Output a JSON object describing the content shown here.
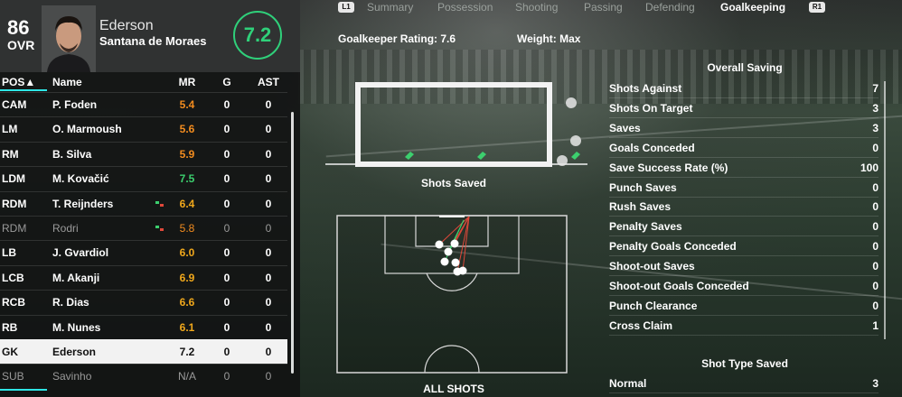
{
  "player": {
    "ovr": "86",
    "ovr_label": "OVR",
    "first_name": "Ederson",
    "last_name": "Santana de Moraes",
    "match_rating": "7.2"
  },
  "table": {
    "headers": {
      "pos": "POS▲",
      "name": "Name",
      "mr": "MR",
      "g": "G",
      "ast": "AST"
    },
    "rows": [
      {
        "pos": "CAM",
        "name": "P. Foden",
        "mr": "5.4",
        "g": "0",
        "ast": "0",
        "mr_color": "#f28c1f"
      },
      {
        "pos": "LM",
        "name": "O. Marmoush",
        "mr": "5.6",
        "g": "0",
        "ast": "0",
        "mr_color": "#f28c1f"
      },
      {
        "pos": "RM",
        "name": "B. Silva",
        "mr": "5.9",
        "g": "0",
        "ast": "0",
        "mr_color": "#f28c1f"
      },
      {
        "pos": "LDM",
        "name": "M. Kovačić",
        "mr": "7.5",
        "g": "0",
        "ast": "0",
        "mr_color": "#3ccf6e"
      },
      {
        "pos": "RDM",
        "name": "T. Reijnders",
        "mr": "6.4",
        "g": "0",
        "ast": "0",
        "mr_color": "#f0a81c",
        "sub": true
      },
      {
        "pos": "RDM",
        "name": "Rodri",
        "mr": "5.8",
        "g": "0",
        "ast": "0",
        "mr_color": "#f28c1f",
        "sub": true,
        "dim": true
      },
      {
        "pos": "LB",
        "name": "J. Gvardiol",
        "mr": "6.0",
        "g": "0",
        "ast": "0",
        "mr_color": "#f0a81c"
      },
      {
        "pos": "LCB",
        "name": "M. Akanji",
        "mr": "6.9",
        "g": "0",
        "ast": "0",
        "mr_color": "#f0a81c"
      },
      {
        "pos": "RCB",
        "name": "R. Dias",
        "mr": "6.6",
        "g": "0",
        "ast": "0",
        "mr_color": "#f0a81c"
      },
      {
        "pos": "RB",
        "name": "M. Nunes",
        "mr": "6.1",
        "g": "0",
        "ast": "0",
        "mr_color": "#f0a81c"
      },
      {
        "pos": "GK",
        "name": "Ederson",
        "mr": "7.2",
        "g": "0",
        "ast": "0",
        "mr_color": "#111111",
        "selected": true
      },
      {
        "pos": "SUB",
        "name": "Savinho",
        "mr": "N/A",
        "g": "0",
        "ast": "0",
        "mr_color": "#9a9a9a",
        "dim": true
      }
    ]
  },
  "tabs": {
    "left_button": "L1",
    "right_button": "R1",
    "items": [
      "Summary",
      "Possession",
      "Shooting",
      "Passing",
      "Defending",
      "Goalkeeping"
    ],
    "active": "Goalkeeping"
  },
  "header_info": {
    "gk_rating": "Goalkeeper Rating: 7.6",
    "weight": "Weight: Max"
  },
  "graphics": {
    "shots_saved_label": "Shots Saved",
    "all_shots_label": "ALL SHOTS"
  },
  "overall_saving": {
    "title": "Overall Saving",
    "items": [
      {
        "label": "Shots Against",
        "value": "7"
      },
      {
        "label": "Shots On Target",
        "value": "3"
      },
      {
        "label": "Saves",
        "value": "3"
      },
      {
        "label": "Goals Conceded",
        "value": "0"
      },
      {
        "label": "Save Success Rate (%)",
        "value": "100"
      },
      {
        "label": "Punch Saves",
        "value": "0"
      },
      {
        "label": "Rush Saves",
        "value": "0"
      },
      {
        "label": "Penalty Saves",
        "value": "0"
      },
      {
        "label": "Penalty Goals Conceded",
        "value": "0"
      },
      {
        "label": "Shoot-out Saves",
        "value": "0"
      },
      {
        "label": "Shoot-out Goals Conceded",
        "value": "0"
      },
      {
        "label": "Punch Clearance",
        "value": "0"
      },
      {
        "label": "Cross Claim",
        "value": "1"
      }
    ]
  },
  "shot_type_saved": {
    "title": "Shot Type Saved",
    "items": [
      {
        "label": "Normal",
        "value": "3"
      }
    ]
  },
  "colors": {
    "accent": "#2ee6e6",
    "rating_green": "#2fd07a"
  }
}
